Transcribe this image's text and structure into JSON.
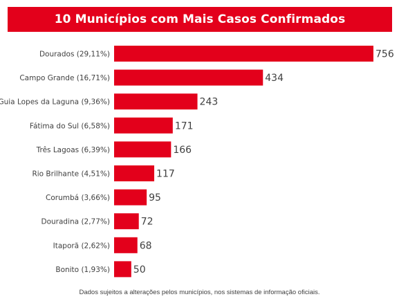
{
  "chart_data": {
    "type": "bar",
    "orientation": "horizontal",
    "title": "10 Municípios com Mais Casos Confirmados",
    "categories": [
      "Dourados (29,11%)",
      "Campo Grande (16,71%)",
      "Guia Lopes da Laguna (9,36%)",
      "Fátima do Sul (6,58%)",
      "Três Lagoas (6,39%)",
      "Rio Brilhante (4,51%)",
      "Corumbá (3,66%)",
      "Douradina (2,77%)",
      "Itaporã (2,62%)",
      "Bonito (1,93%)"
    ],
    "values": [
      756,
      434,
      243,
      171,
      166,
      117,
      95,
      72,
      68,
      50
    ],
    "bar_color": "#e3001b",
    "grid": false,
    "legend": "none",
    "footnote": "Dados sujeitos a alterações pelos municípios, nos sistemas de informação oficiais."
  }
}
